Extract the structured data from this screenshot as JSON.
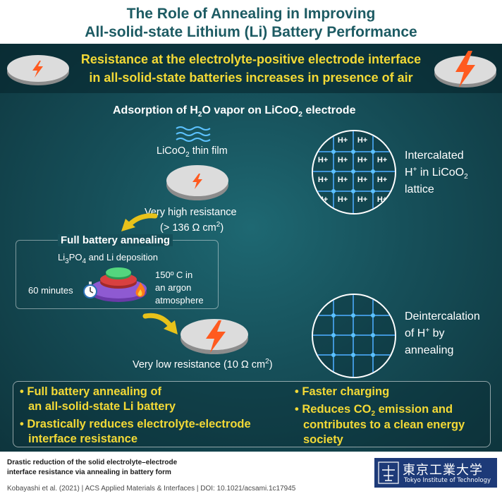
{
  "header": {
    "title_line1": "The Role of Annealing in Improving",
    "title_line2": "All-solid-state Lithium (Li) Battery Performance"
  },
  "banner": {
    "line1": "Resistance at the electrolyte-positive electrode interface",
    "line2": "in all-solid-state batteries increases in presence of air"
  },
  "adsorption": {
    "prefix": "Adsorption of H",
    "sub": "2",
    "middle": "O vapor on LiCoO",
    "sub2": "2",
    "suffix": " electrode"
  },
  "thin_film": {
    "prefix": "LiCoO",
    "sub": "2",
    "suffix": " thin film"
  },
  "high_resistance": {
    "line1": "Very high resistance",
    "line2_prefix": "(> 136 Ω cm",
    "sup": "2",
    "line2_suffix": ")"
  },
  "annealing": {
    "title": "Full battery annealing",
    "dep_prefix": "Li",
    "dep_sub1": "3",
    "dep_mid": "PO",
    "dep_sub2": "4",
    "dep_suffix": " and Li deposition",
    "time": "60 minutes",
    "cond1": "150º C in",
    "cond2": "an argon",
    "cond3": "atmosphere"
  },
  "low_resistance": {
    "prefix": "Very low resistance (10 Ω cm",
    "sup": "2",
    "suffix": ")"
  },
  "lattice_top": {
    "ions": [
      "H+",
      "H+",
      "H+",
      "H+",
      "H+",
      "H+",
      "H+",
      "H+",
      "H+",
      "H+",
      "H+",
      "H+",
      "H+",
      "H+"
    ],
    "label1": "Intercalated",
    "label2_prefix": "H",
    "label2_sup": "+",
    "label2_suffix": " in LiCoO",
    "label2_sub": "2",
    "label3": "lattice"
  },
  "lattice_bottom": {
    "label1": "Deintercalation",
    "label2_prefix": "of H",
    "label2_sup": "+",
    "label2_suffix": " by",
    "label3": "annealing"
  },
  "benefits": {
    "b1_line1": "• Full battery annealing of",
    "b1_line2": "an all-solid-state Li battery",
    "b2_line1": "• Drastically reduces electrolyte-electrode",
    "b2_line2": "interface resistance",
    "b3": "• Faster charging",
    "b4_prefix": "• Reduces CO",
    "b4_sub": "2",
    "b4_suffix": " emission and",
    "b4_line2": "contributes to a clean energy",
    "b4_line3": "society"
  },
  "footer": {
    "caption1": "Drastic reduction of the solid electrolyte–electrode",
    "caption2": "interface resistance via annealing in battery form",
    "citation": "Kobayashi et al. (2021) | ACS Applied Materials & Interfaces | DOI: 10.1021/acsami.1c17945",
    "logo_jp": "東京工業大学",
    "logo_en": "Tokyo Institute of Technology"
  },
  "colors": {
    "title": "#1d5b63",
    "highlight": "#f3d936",
    "background": "#164f59",
    "lattice_line": "#3f95d8",
    "bolt": "#ff5a1f",
    "logo_bg": "#1d3a78"
  }
}
